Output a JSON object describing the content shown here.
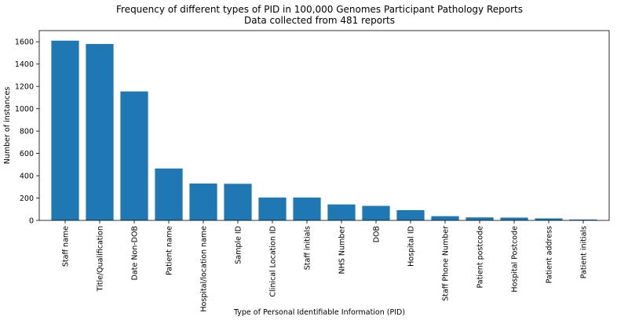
{
  "chart_data": {
    "type": "bar",
    "title": "Frequency of different types of PID in 100,000 Genomes Participant Pathology Reports",
    "subtitle": "Data collected from 481 reports",
    "xlabel": "Type of Personal Identifiable Information (PID)",
    "ylabel": "Number of instances",
    "ylim": [
      0,
      1700
    ],
    "yticks": [
      0,
      200,
      400,
      600,
      800,
      1000,
      1200,
      1400,
      1600
    ],
    "bar_color": "#1f77b4",
    "categories": [
      "Staff name",
      "Title/Qualification",
      "Date Non-DOB",
      "Patient name",
      "Hospital/location name",
      "Sample ID",
      "Clinical Location ID",
      "Staff initials",
      "NHS Number",
      "DOB",
      "Hospital ID",
      "Staff Phone Number",
      "Patient postcode",
      "Hospital Postcode",
      "Patient address",
      "Patient initials"
    ],
    "values": [
      1610,
      1580,
      1155,
      465,
      330,
      328,
      205,
      205,
      143,
      130,
      92,
      38,
      27,
      25,
      18,
      8
    ]
  }
}
